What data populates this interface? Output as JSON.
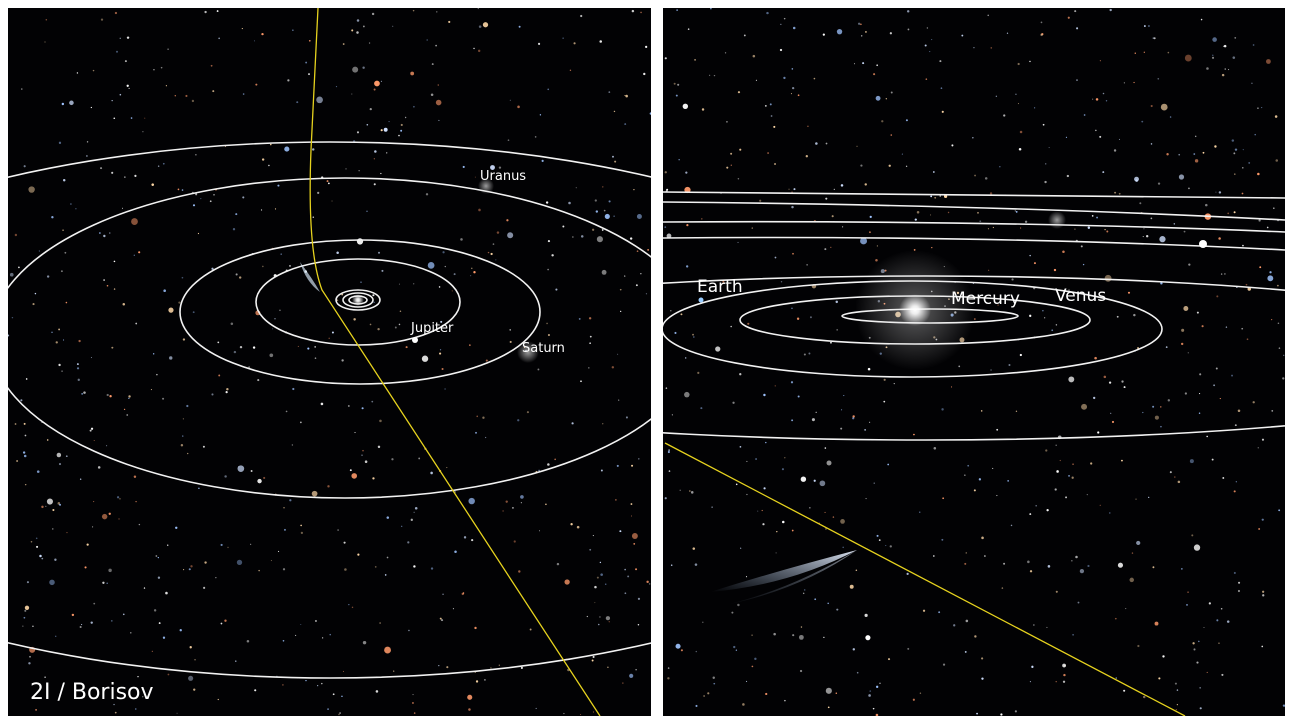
{
  "left_panel": {
    "planet_labels": [
      "Uranus",
      "Jupiter",
      "Saturn"
    ],
    "caption": "2I / Borisov"
  },
  "right_panel": {
    "planet_labels": [
      "Earth",
      "Mercury",
      "Venus"
    ]
  }
}
